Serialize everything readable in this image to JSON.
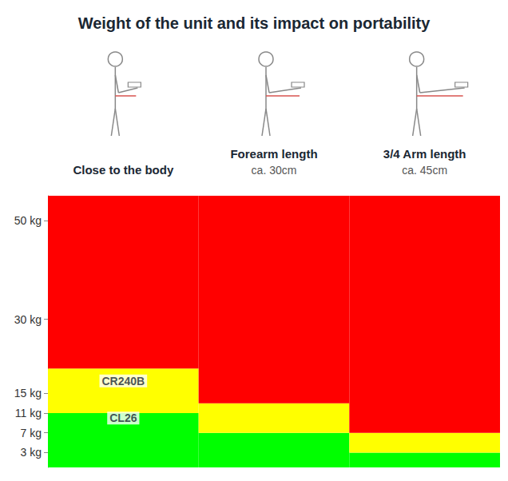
{
  "chart_data": {
    "type": "bar",
    "title": "Weight of the unit and its impact on portability",
    "categories": [
      "Close to the body",
      "Forearm length",
      "3/4 Arm length"
    ],
    "category_notes": [
      null,
      "ca. 30cm",
      "ca. 45cm"
    ],
    "stacked": true,
    "grid": false,
    "series": [
      {
        "color": "#00ff00",
        "values": [
          11,
          7,
          3
        ]
      },
      {
        "color": "#ffff00",
        "values": [
          9,
          6,
          4
        ]
      },
      {
        "color": "#ff0000",
        "values": [
          35,
          42,
          48
        ]
      }
    ],
    "ylim": [
      0,
      55
    ],
    "yticks": [
      {
        "value": 3,
        "label": "3 kg"
      },
      {
        "value": 7,
        "label": "7 kg"
      },
      {
        "value": 11,
        "label": "11 kg"
      },
      {
        "value": 15,
        "label": "15 kg"
      },
      {
        "value": 30,
        "label": "30 kg"
      },
      {
        "value": 50,
        "label": "50 kg"
      }
    ],
    "annotations": [
      {
        "text": "CR240B",
        "x": "Close to the body",
        "y": 17.5
      },
      {
        "text": "CL26",
        "x": "Close to the body",
        "y": 10
      }
    ]
  }
}
